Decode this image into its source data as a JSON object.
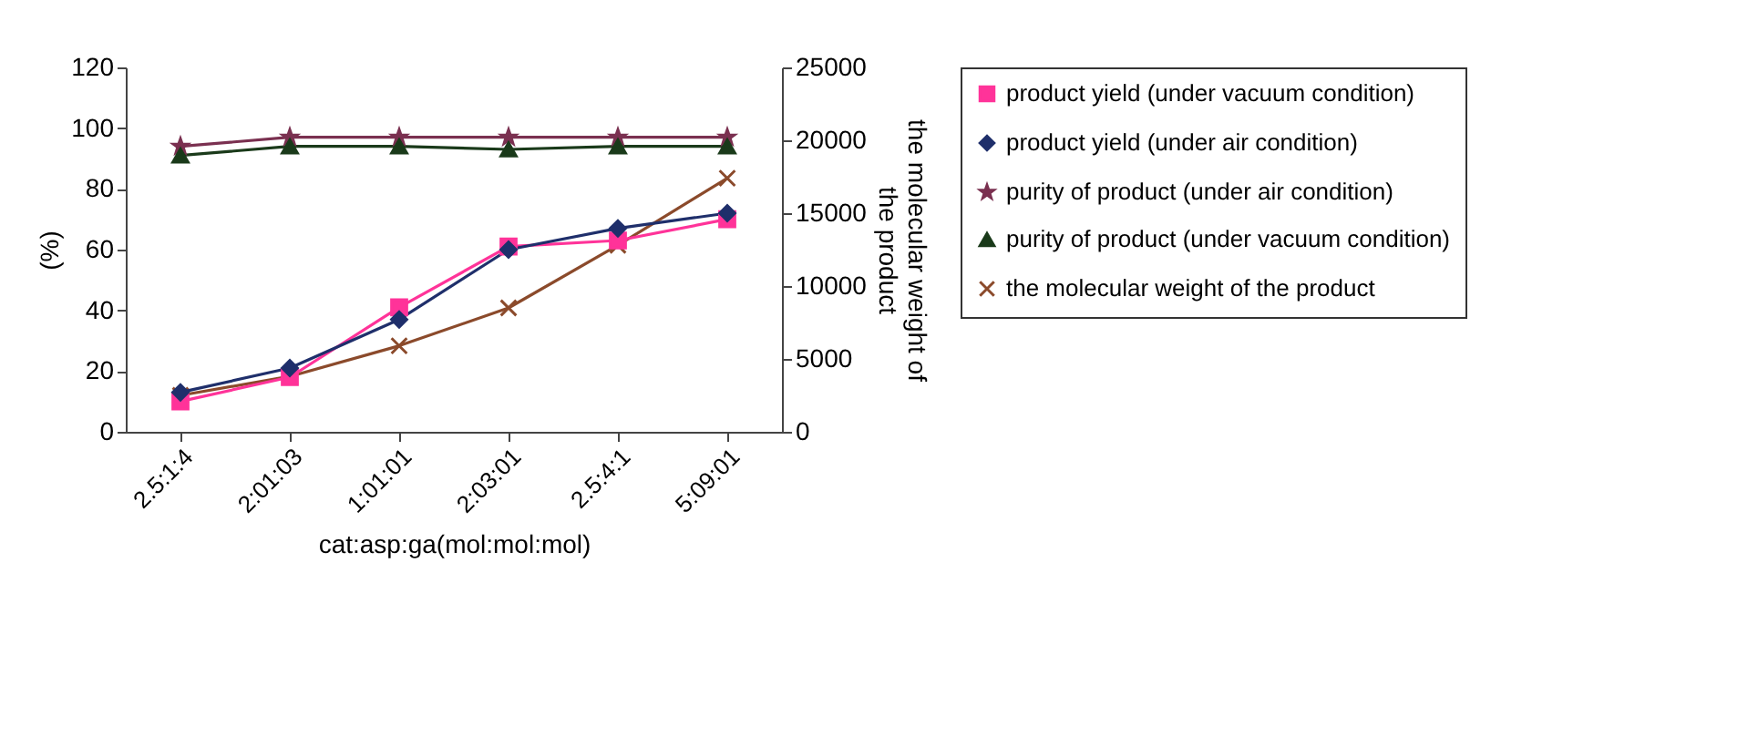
{
  "chart_data": {
    "type": "line",
    "xlabel": "cat:asp:ga(mol:mol:mol)",
    "ylabel": "(%)",
    "y2label": "the molecular weight of the product",
    "categories": [
      "2.5:1:4",
      "2:01:03",
      "1:01:01",
      "2:03:01",
      "2.5:4:1",
      "5:09:01"
    ],
    "series": [
      {
        "name": "product yield (under vacuum condition)",
        "color": "#ff3399",
        "marker": "square",
        "values": [
          10,
          18,
          41,
          61,
          63,
          70
        ]
      },
      {
        "name": "product yield (under air condition)",
        "color": "#1f2f6b",
        "marker": "diamond",
        "values": [
          13,
          21,
          37,
          60,
          67,
          72
        ]
      },
      {
        "name": "purity of product (under air condition)",
        "color": "#7a3050",
        "marker": "star",
        "values": [
          94,
          97,
          97,
          97,
          97,
          97
        ]
      },
      {
        "name": "purity of product (under vacuum condition)",
        "color": "#1a3a1a",
        "marker": "triangle",
        "values": [
          91,
          94,
          94,
          93,
          94,
          94
        ]
      },
      {
        "name": "the molecular weight of the product",
        "color": "#8b4a2b",
        "marker": "cross",
        "axis": "y2",
        "values": [
          2500,
          3800,
          5900,
          8500,
          12800,
          17400
        ]
      }
    ],
    "ylim": [
      0,
      120
    ],
    "yticks": [
      0,
      20,
      40,
      60,
      80,
      100,
      120
    ],
    "y2lim": [
      0,
      25000
    ],
    "y2ticks": [
      0,
      5000,
      10000,
      15000,
      20000,
      25000
    ],
    "grid": false,
    "legend": "right"
  }
}
